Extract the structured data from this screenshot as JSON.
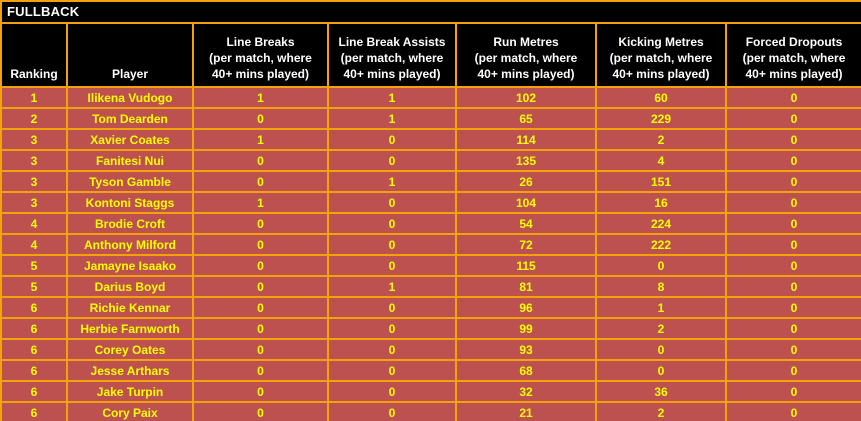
{
  "title": "FULLBACK",
  "colors": {
    "border": "#F2A20B",
    "header_bg": "#000000",
    "header_text": "#FFFFFF",
    "row_bg": "#BC5150",
    "row_text": "#FFFF00"
  },
  "columns": [
    {
      "key": "ranking",
      "lines": [
        "Ranking"
      ]
    },
    {
      "key": "player",
      "lines": [
        "Player"
      ]
    },
    {
      "key": "line_breaks",
      "lines": [
        "Line Breaks",
        "(per match, where",
        "40+ mins played)"
      ]
    },
    {
      "key": "line_break_assists",
      "lines": [
        "Line Break Assists",
        "(per match, where",
        "40+ mins played)"
      ]
    },
    {
      "key": "run_metres",
      "lines": [
        "Run Metres",
        "(per match, where",
        "40+ mins played)"
      ]
    },
    {
      "key": "kicking_metres",
      "lines": [
        "Kicking Metres",
        "(per match, where",
        "40+ mins played)"
      ]
    },
    {
      "key": "forced_dropouts",
      "lines": [
        "Forced Dropouts",
        "(per match, where",
        "40+ mins played)"
      ]
    }
  ],
  "rows": [
    {
      "ranking": "1",
      "player": "Ilikena Vudogo",
      "line_breaks": "1",
      "line_break_assists": "1",
      "run_metres": "102",
      "kicking_metres": "60",
      "forced_dropouts": "0"
    },
    {
      "ranking": "2",
      "player": "Tom Dearden",
      "line_breaks": "0",
      "line_break_assists": "1",
      "run_metres": "65",
      "kicking_metres": "229",
      "forced_dropouts": "0"
    },
    {
      "ranking": "3",
      "player": "Xavier Coates",
      "line_breaks": "1",
      "line_break_assists": "0",
      "run_metres": "114",
      "kicking_metres": "2",
      "forced_dropouts": "0"
    },
    {
      "ranking": "3",
      "player": "Fanitesi Nui",
      "line_breaks": "0",
      "line_break_assists": "0",
      "run_metres": "135",
      "kicking_metres": "4",
      "forced_dropouts": "0"
    },
    {
      "ranking": "3",
      "player": "Tyson Gamble",
      "line_breaks": "0",
      "line_break_assists": "1",
      "run_metres": "26",
      "kicking_metres": "151",
      "forced_dropouts": "0"
    },
    {
      "ranking": "3",
      "player": "Kontoni Staggs",
      "line_breaks": "1",
      "line_break_assists": "0",
      "run_metres": "104",
      "kicking_metres": "16",
      "forced_dropouts": "0"
    },
    {
      "ranking": "4",
      "player": "Brodie Croft",
      "line_breaks": "0",
      "line_break_assists": "0",
      "run_metres": "54",
      "kicking_metres": "224",
      "forced_dropouts": "0"
    },
    {
      "ranking": "4",
      "player": "Anthony Milford",
      "line_breaks": "0",
      "line_break_assists": "0",
      "run_metres": "72",
      "kicking_metres": "222",
      "forced_dropouts": "0"
    },
    {
      "ranking": "5",
      "player": "Jamayne Isaako",
      "line_breaks": "0",
      "line_break_assists": "0",
      "run_metres": "115",
      "kicking_metres": "0",
      "forced_dropouts": "0"
    },
    {
      "ranking": "5",
      "player": "Darius Boyd",
      "line_breaks": "0",
      "line_break_assists": "1",
      "run_metres": "81",
      "kicking_metres": "8",
      "forced_dropouts": "0"
    },
    {
      "ranking": "6",
      "player": "Richie Kennar",
      "line_breaks": "0",
      "line_break_assists": "0",
      "run_metres": "96",
      "kicking_metres": "1",
      "forced_dropouts": "0"
    },
    {
      "ranking": "6",
      "player": "Herbie Farnworth",
      "line_breaks": "0",
      "line_break_assists": "0",
      "run_metres": "99",
      "kicking_metres": "2",
      "forced_dropouts": "0"
    },
    {
      "ranking": "6",
      "player": "Corey Oates",
      "line_breaks": "0",
      "line_break_assists": "0",
      "run_metres": "93",
      "kicking_metres": "0",
      "forced_dropouts": "0"
    },
    {
      "ranking": "6",
      "player": "Jesse Arthars",
      "line_breaks": "0",
      "line_break_assists": "0",
      "run_metres": "68",
      "kicking_metres": "0",
      "forced_dropouts": "0"
    },
    {
      "ranking": "6",
      "player": "Jake Turpin",
      "line_breaks": "0",
      "line_break_assists": "0",
      "run_metres": "32",
      "kicking_metres": "36",
      "forced_dropouts": "0"
    },
    {
      "ranking": "6",
      "player": "Cory Paix",
      "line_breaks": "0",
      "line_break_assists": "0",
      "run_metres": "21",
      "kicking_metres": "2",
      "forced_dropouts": "0"
    }
  ]
}
